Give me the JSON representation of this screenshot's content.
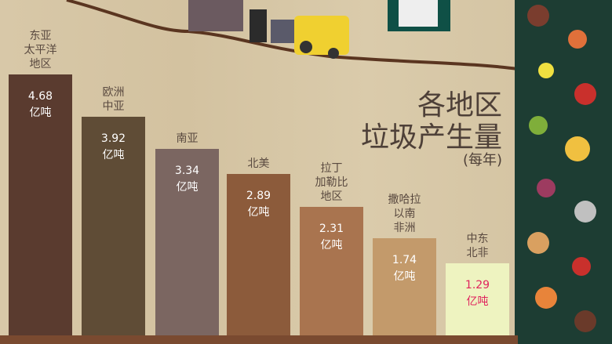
{
  "chart_data": {
    "type": "bar",
    "title": [
      "各地区",
      "垃圾产生量"
    ],
    "subtitle": "(每年)",
    "unit": "亿吨",
    "categories": [
      "东亚\n太平洋\n地区",
      "欧洲\n中亚",
      "南亚",
      "北美",
      "拉丁\n加勒比\n地区",
      "撒哈拉\n以南\n非洲",
      "中东\n北非"
    ],
    "values": [
      4.68,
      3.92,
      3.34,
      2.89,
      2.31,
      1.74,
      1.29
    ],
    "value_labels": [
      "4.68",
      "3.92",
      "3.34",
      "2.89",
      "2.31",
      "1.74",
      "1.29"
    ],
    "colors": [
      "#5a3b2f",
      "#5f4c36",
      "#7b6661",
      "#8c5b3b",
      "#a9744f",
      "#c39a6b",
      "#eef3c0"
    ],
    "label_colors": [
      "#ffffff",
      "#ffffff",
      "#ffffff",
      "#ffffff",
      "#ffffff",
      "#ffffff",
      "#e0245e"
    ],
    "ylim": [
      0,
      4.68
    ]
  }
}
